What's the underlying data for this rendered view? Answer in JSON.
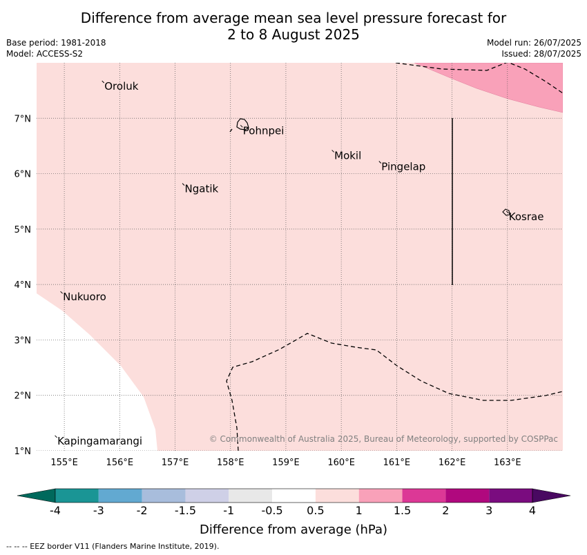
{
  "title": {
    "line1": "Difference from average mean sea level pressure forecast for",
    "line2": "2 to 8 August 2025"
  },
  "meta": {
    "base_period": "Base period: 1981-2018",
    "model": "Model: ACCESS-S2",
    "model_run": "Model run: 26/07/2025",
    "issued": "Issued: 28/07/2025"
  },
  "map": {
    "lon_ticks": [
      "155°E",
      "156°E",
      "157°E",
      "158°E",
      "159°E",
      "160°E",
      "161°E",
      "162°E",
      "163°E"
    ],
    "lat_ticks": [
      "1°N",
      "2°N",
      "3°N",
      "4°N",
      "5°N",
      "6°N",
      "7°N"
    ],
    "lon_values": [
      155,
      156,
      157,
      158,
      159,
      160,
      161,
      162,
      163
    ],
    "lat_values": [
      1,
      2,
      3,
      4,
      5,
      6,
      7
    ],
    "lon_range": [
      154.5,
      164.0
    ],
    "lat_range": [
      1.0,
      8.0
    ],
    "places": [
      {
        "name": "Oroluk",
        "lon": 155.7,
        "lat": 7.65
      },
      {
        "name": "Pohnpei",
        "lon": 158.2,
        "lat": 6.85
      },
      {
        "name": "Mokil",
        "lon": 159.85,
        "lat": 6.4
      },
      {
        "name": "Pingelap",
        "lon": 160.7,
        "lat": 6.2
      },
      {
        "name": "Ngatik",
        "lon": 157.15,
        "lat": 5.8
      },
      {
        "name": "Kosrae",
        "lon": 163.0,
        "lat": 5.3
      },
      {
        "name": "Nukuoro",
        "lon": 154.95,
        "lat": 3.85
      },
      {
        "name": "Kapingamarangi",
        "lon": 154.85,
        "lat": 1.25
      }
    ],
    "copyright": "© Commonwealth of Australia 2025, Bureau of Meteorology, supported by COSPPac",
    "fill_colors": {
      "light": "#fcdedc",
      "medium": "#f9a1b9"
    }
  },
  "legend": {
    "ticks": [
      "-4",
      "-3",
      "-2",
      "-1.5",
      "-1",
      "-0.5",
      "0.5",
      "1",
      "1.5",
      "2",
      "3",
      "4"
    ],
    "colors": [
      "#00695c",
      "#1a9595",
      "#62a9d1",
      "#a8bddc",
      "#cfd0e7",
      "#e8e8e8",
      "#ffffff",
      "#fcdedc",
      "#f9a1b9",
      "#dc3896",
      "#b0087e",
      "#7a0c7f",
      "#490961"
    ],
    "label": "Difference from average (hPa)"
  },
  "footnote": "--  --  -- EEZ border V11 (Flanders Marine Institute, 2019)."
}
